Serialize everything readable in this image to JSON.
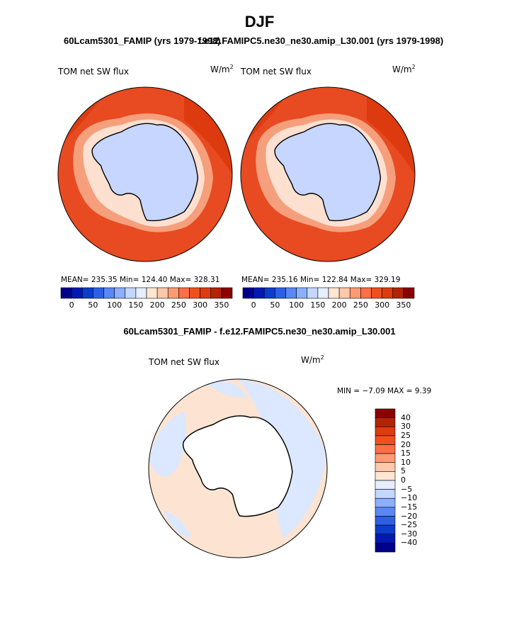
{
  "figure": {
    "title": "DJF",
    "case1_label": "60Lcam5301_FAMIP (yrs 1979-1998)",
    "case2_label": "f.e12.FAMIPC5.ne30_ne30.amip_L30.001 (yrs 1979-1998)",
    "diff_label": "60Lcam5301_FAMIP - f.e12.FAMIPC5.ne30_ne30.amip_L30.001"
  },
  "panels": [
    {
      "variable": "TOM net SW flux",
      "units": "W/m",
      "units_exp": "2",
      "stats": "MEAN= 235.35   Min= 124.40   Max= 328.31"
    },
    {
      "variable": "TOM net SW flux",
      "units": "W/m",
      "units_exp": "2",
      "stats": "MEAN= 235.16   Min= 122.84   Max= 329.19"
    }
  ],
  "diff_panel": {
    "variable": "TOM net SW flux",
    "units": "W/m",
    "units_exp": "2",
    "stats": "MIN =  −7.09 MAX =   9.39"
  },
  "colorbar_abs": {
    "colors": [
      "#00008b",
      "#0019b4",
      "#0a3ccd",
      "#2d5fe6",
      "#5a87f5",
      "#8cafff",
      "#c3d7ff",
      "#e6eeff",
      "#ffe6d2",
      "#ffc8aa",
      "#ff9b73",
      "#ff6e46",
      "#f0501e",
      "#dc3c0f",
      "#b42305",
      "#8b0000"
    ],
    "ticks": [
      "0",
      "50",
      "100",
      "150",
      "200",
      "250",
      "300",
      "350"
    ]
  },
  "colorbar_diff": {
    "colors": [
      "#8b0000",
      "#b42305",
      "#dc3c0f",
      "#f0501e",
      "#ff6e46",
      "#ff9b73",
      "#ffc8aa",
      "#ffe6d2",
      "#e6eeff",
      "#c3d7ff",
      "#8cafff",
      "#5a87f5",
      "#2d5fe6",
      "#0a3ccd",
      "#0019b4",
      "#00008b"
    ],
    "ticks": [
      "40",
      "30",
      "25",
      "20",
      "15",
      "10",
      "5",
      "0",
      "−5",
      "−10",
      "−15",
      "−20",
      "−25",
      "−30",
      "−40"
    ]
  },
  "colors": {
    "ocean_abs": "#e84a22",
    "ocean_dark": "#d9360c",
    "ice_edge_1": "#f59f7c",
    "ice_edge_2": "#fde0d0",
    "antarctica": "#c6d6ff",
    "diff_pos": "#fde4d2",
    "diff_neg": "#dbe8ff"
  }
}
